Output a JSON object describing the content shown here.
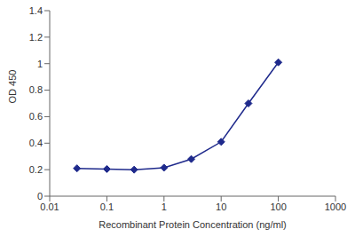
{
  "chart_data": {
    "type": "line",
    "x_label": "Recombinant Protein Concentration (ng/ml)",
    "y_label": "OD 450",
    "x": [
      0.03,
      0.1,
      0.3,
      1,
      3,
      10,
      30,
      100
    ],
    "values": [
      0.21,
      0.205,
      0.2,
      0.215,
      0.28,
      0.41,
      0.7,
      1.01
    ],
    "color": "#1f2a8c",
    "marker": "diamond",
    "line_style": "solid",
    "log": "x",
    "xlim": [
      0.01,
      1000
    ],
    "xticks": [
      0.01,
      0.1,
      1,
      10,
      100,
      1000
    ],
    "ylim": [
      0,
      1.4
    ],
    "yticks": [
      0,
      0.2,
      0.4,
      0.6,
      0.8,
      1,
      1.2,
      1.4
    ],
    "grid": false
  }
}
